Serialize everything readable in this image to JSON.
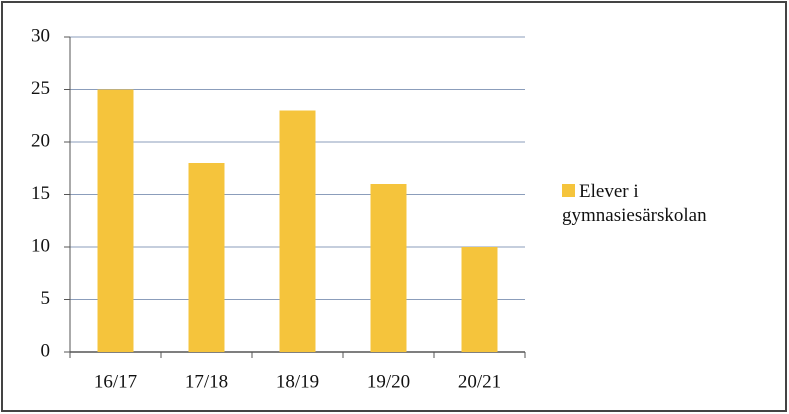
{
  "chart_data": {
    "type": "bar",
    "categories": [
      "16/17",
      "17/18",
      "18/19",
      "19/20",
      "20/21"
    ],
    "series": [
      {
        "name": "Elever i gymnasiesärskolan",
        "color": "#f5c43c",
        "values": [
          25,
          18,
          23,
          16,
          10
        ]
      }
    ],
    "ylim": [
      0,
      30
    ],
    "yticks": [
      0,
      5,
      10,
      15,
      20,
      25,
      30
    ],
    "grid": true
  }
}
